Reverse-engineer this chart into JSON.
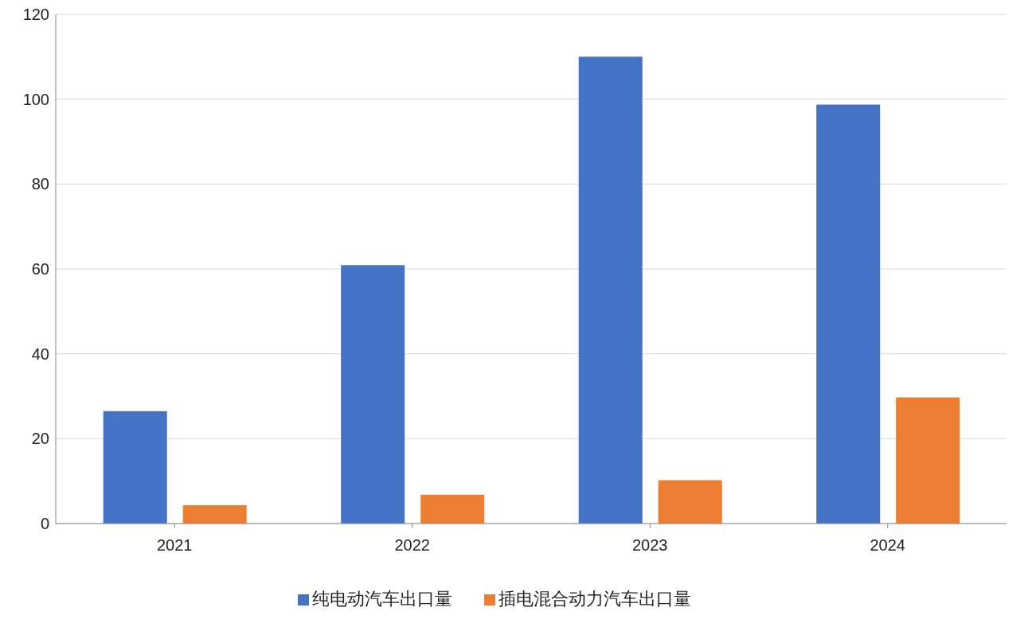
{
  "chart_data": {
    "type": "bar",
    "categories": [
      "2021",
      "2022",
      "2023",
      "2024"
    ],
    "series": [
      {
        "name": "纯电动汽车出口量",
        "color": "#4472c4",
        "values": [
          26.5,
          60.9,
          110.0,
          98.7
        ]
      },
      {
        "name": "插电混合动力汽车出口量",
        "color": "#ed7d31",
        "values": [
          4.3,
          6.8,
          10.2,
          29.7
        ]
      }
    ],
    "ylim": [
      0,
      120
    ],
    "yticks": [
      0,
      20,
      40,
      60,
      80,
      100,
      120
    ],
    "grid": "y",
    "legend": "bottom"
  }
}
